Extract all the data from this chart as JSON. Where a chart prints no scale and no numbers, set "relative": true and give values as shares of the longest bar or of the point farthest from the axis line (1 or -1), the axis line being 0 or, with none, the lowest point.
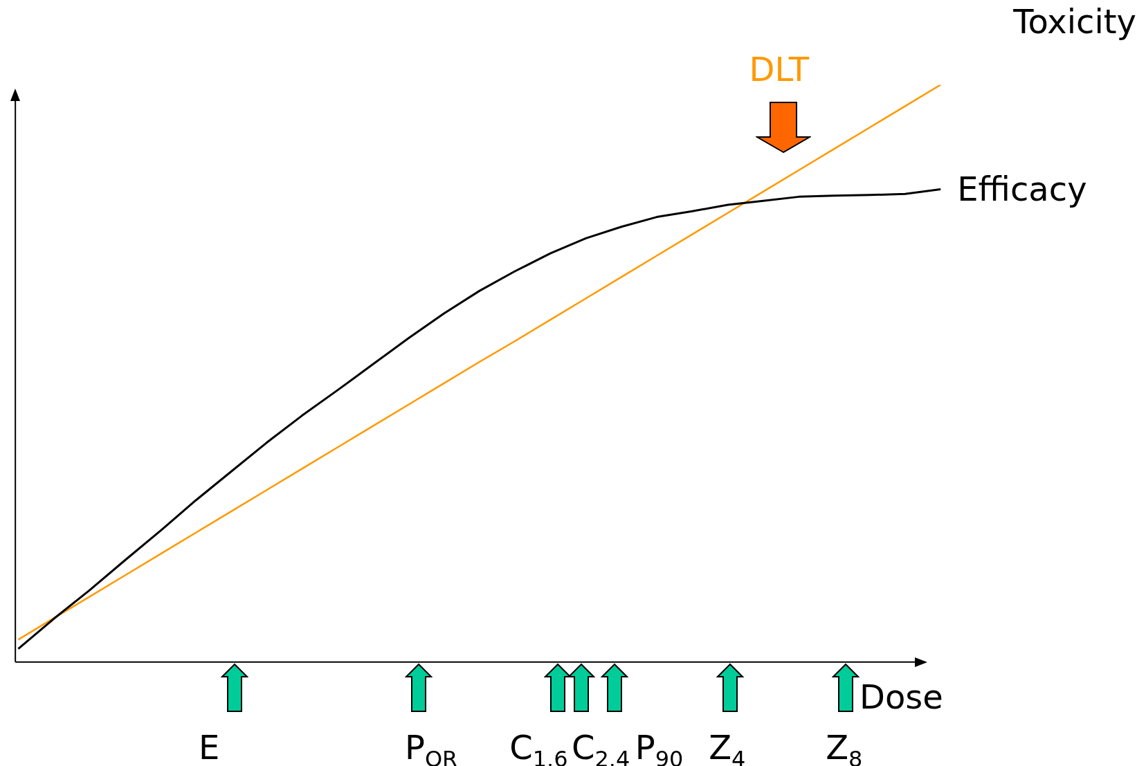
{
  "chart_data": {
    "type": "line",
    "relative": true,
    "xlabel": "Dose",
    "categories": [
      null,
      null,
      null,
      null,
      null,
      null,
      null,
      null,
      null,
      null,
      null,
      null,
      null,
      null,
      null,
      null,
      null,
      null,
      null,
      null,
      null,
      null,
      null,
      null,
      null,
      null,
      null
    ],
    "series": [
      {
        "name": "Efficacy",
        "color": "#000000",
        "values": [
          0.023,
          0.075,
          0.124,
          0.176,
          0.227,
          0.28,
          0.33,
          0.38,
          0.427,
          0.471,
          0.516,
          0.561,
          0.604,
          0.643,
          0.677,
          0.708,
          0.734,
          0.754,
          0.771,
          0.781,
          0.792,
          0.799,
          0.806,
          0.808,
          0.809,
          0.811,
          0.819
        ]
      },
      {
        "name": "Toxicity",
        "color": "#ff9900",
        "values": [
          0.039,
          0.076,
          0.113,
          0.15,
          0.187,
          0.224,
          0.261,
          0.298,
          0.335,
          0.372,
          0.409,
          0.446,
          0.483,
          0.52,
          0.556,
          0.593,
          0.63,
          0.667,
          0.704,
          0.741,
          0.778,
          0.815,
          0.852,
          0.889,
          0.926,
          0.963,
          1.0
        ]
      }
    ],
    "annotations": [
      "DLT",
      "E",
      "P$_{OR}$",
      "C$_{1.6}$",
      "C$_{2.4}$",
      "P$_{90}$",
      "Z$_{4}$",
      "Z$_{8}$"
    ]
  }
}
